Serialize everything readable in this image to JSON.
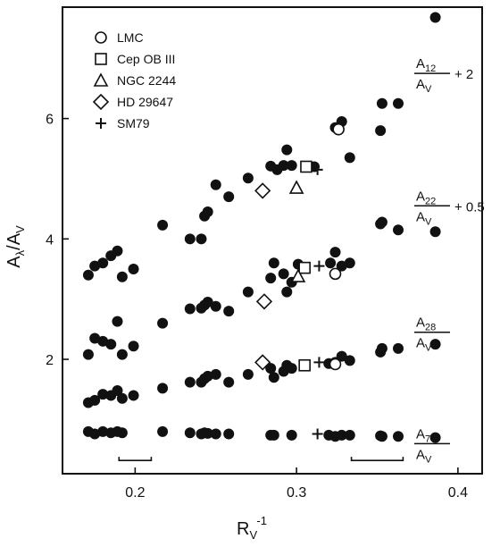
{
  "chart_data": {
    "type": "scatter",
    "xlabel_main": "R",
    "xlabel_sub": "V",
    "xlabel_sup": "-1",
    "ylabel_main": "A",
    "ylabel_sub": "λ",
    "ylabel_tail": "/A",
    "ylabel_sub2": "V",
    "xlim": [
      0.155,
      0.415
    ],
    "ylim": [
      0.1,
      7.85
    ],
    "xticks": [
      {
        "v": 0.2,
        "label": "0.2"
      },
      {
        "v": 0.3,
        "label": "0.3"
      },
      {
        "v": 0.4,
        "label": "0.4"
      }
    ],
    "yticks": [
      {
        "v": 2,
        "label": "2"
      },
      {
        "v": 4,
        "label": "4"
      },
      {
        "v": 6,
        "label": "6"
      }
    ],
    "legend": [
      {
        "symbol": "circle",
        "label": "LMC"
      },
      {
        "symbol": "square",
        "label": "Cep OB III"
      },
      {
        "symbol": "triangle",
        "label": "NGC 2244"
      },
      {
        "symbol": "diamond",
        "label": "HD 29647"
      },
      {
        "symbol": "plus",
        "label": "SM79"
      }
    ],
    "series": [
      {
        "name": "A12",
        "num": "A",
        "num_sub": "12",
        "den": "A",
        "den_sub": "V",
        "offset": "+ 2",
        "label_y": 6.75,
        "points": [
          [
            0.171,
            3.4
          ],
          [
            0.175,
            3.55
          ],
          [
            0.18,
            3.6
          ],
          [
            0.185,
            3.72
          ],
          [
            0.189,
            3.8
          ],
          [
            0.192,
            3.37
          ],
          [
            0.199,
            3.5
          ],
          [
            0.217,
            4.23
          ],
          [
            0.234,
            4.0
          ],
          [
            0.241,
            4.0
          ],
          [
            0.243,
            4.38
          ],
          [
            0.245,
            4.45
          ],
          [
            0.25,
            4.9
          ],
          [
            0.258,
            4.7
          ],
          [
            0.27,
            5.01
          ],
          [
            0.284,
            5.21
          ],
          [
            0.288,
            5.15
          ],
          [
            0.292,
            5.22
          ],
          [
            0.294,
            5.48
          ],
          [
            0.297,
            5.22
          ],
          [
            0.311,
            5.2
          ],
          [
            0.324,
            5.85
          ],
          [
            0.328,
            5.95
          ],
          [
            0.333,
            5.35
          ],
          [
            0.352,
            5.8
          ],
          [
            0.353,
            6.25
          ],
          [
            0.363,
            6.25
          ],
          [
            0.386,
            7.68
          ]
        ],
        "markers": [
          {
            "shape": "circle",
            "x": 0.326,
            "y": 5.82
          },
          {
            "shape": "square",
            "x": 0.306,
            "y": 5.2
          },
          {
            "shape": "triangle",
            "x": 0.3,
            "y": 4.85
          },
          {
            "shape": "diamond",
            "x": 0.279,
            "y": 4.8
          },
          {
            "shape": "plus",
            "x": 0.313,
            "y": 5.15
          }
        ]
      },
      {
        "name": "A22",
        "num": "A",
        "num_sub": "22",
        "den": "A",
        "den_sub": "V",
        "offset": "+ 0.5",
        "label_y": 4.55,
        "points": [
          [
            0.171,
            2.08
          ],
          [
            0.175,
            2.35
          ],
          [
            0.18,
            2.3
          ],
          [
            0.185,
            2.25
          ],
          [
            0.189,
            2.63
          ],
          [
            0.192,
            2.08
          ],
          [
            0.199,
            2.22
          ],
          [
            0.217,
            2.6
          ],
          [
            0.234,
            2.84
          ],
          [
            0.241,
            2.85
          ],
          [
            0.243,
            2.9
          ],
          [
            0.245,
            2.95
          ],
          [
            0.25,
            2.88
          ],
          [
            0.258,
            2.8
          ],
          [
            0.27,
            3.12
          ],
          [
            0.284,
            3.35
          ],
          [
            0.286,
            3.6
          ],
          [
            0.292,
            3.42
          ],
          [
            0.294,
            3.12
          ],
          [
            0.297,
            3.28
          ],
          [
            0.301,
            3.58
          ],
          [
            0.321,
            3.6
          ],
          [
            0.324,
            3.78
          ],
          [
            0.328,
            3.55
          ],
          [
            0.333,
            3.6
          ],
          [
            0.352,
            4.25
          ],
          [
            0.353,
            4.28
          ],
          [
            0.363,
            4.15
          ],
          [
            0.386,
            4.12
          ]
        ],
        "markers": [
          {
            "shape": "circle",
            "x": 0.324,
            "y": 3.42
          },
          {
            "shape": "square",
            "x": 0.305,
            "y": 3.52
          },
          {
            "shape": "triangle",
            "x": 0.301,
            "y": 3.38
          },
          {
            "shape": "diamond",
            "x": 0.28,
            "y": 2.96
          },
          {
            "shape": "plus",
            "x": 0.314,
            "y": 3.55
          }
        ]
      },
      {
        "name": "A28",
        "num": "A",
        "num_sub": "28",
        "den": "A",
        "den_sub": "V",
        "offset": "",
        "label_y": 2.45,
        "points": [
          [
            0.171,
            1.28
          ],
          [
            0.175,
            1.32
          ],
          [
            0.18,
            1.42
          ],
          [
            0.185,
            1.4
          ],
          [
            0.189,
            1.48
          ],
          [
            0.192,
            1.35
          ],
          [
            0.199,
            1.4
          ],
          [
            0.217,
            1.52
          ],
          [
            0.234,
            1.62
          ],
          [
            0.241,
            1.62
          ],
          [
            0.243,
            1.68
          ],
          [
            0.245,
            1.72
          ],
          [
            0.25,
            1.75
          ],
          [
            0.258,
            1.62
          ],
          [
            0.27,
            1.75
          ],
          [
            0.284,
            1.85
          ],
          [
            0.286,
            1.7
          ],
          [
            0.292,
            1.8
          ],
          [
            0.294,
            1.9
          ],
          [
            0.297,
            1.85
          ],
          [
            0.32,
            1.93
          ],
          [
            0.324,
            1.95
          ],
          [
            0.328,
            2.05
          ],
          [
            0.333,
            1.98
          ],
          [
            0.352,
            2.12
          ],
          [
            0.353,
            2.18
          ],
          [
            0.363,
            2.18
          ],
          [
            0.386,
            2.25
          ]
        ],
        "markers": [
          {
            "shape": "circle",
            "x": 0.324,
            "y": 1.92
          },
          {
            "shape": "square",
            "x": 0.305,
            "y": 1.9
          },
          {
            "shape": "diamond",
            "x": 0.279,
            "y": 1.95
          },
          {
            "shape": "plus",
            "x": 0.314,
            "y": 1.95
          }
        ]
      },
      {
        "name": "A70",
        "num": "A",
        "num_sub": "70",
        "den": "A",
        "den_sub": "V",
        "offset": "",
        "label_y": 0.6,
        "points": [
          [
            0.171,
            0.8
          ],
          [
            0.175,
            0.76
          ],
          [
            0.18,
            0.8
          ],
          [
            0.185,
            0.78
          ],
          [
            0.189,
            0.8
          ],
          [
            0.192,
            0.78
          ],
          [
            0.217,
            0.8
          ],
          [
            0.234,
            0.78
          ],
          [
            0.241,
            0.76
          ],
          [
            0.243,
            0.78
          ],
          [
            0.245,
            0.77
          ],
          [
            0.25,
            0.76
          ],
          [
            0.258,
            0.76
          ],
          [
            0.284,
            0.74
          ],
          [
            0.286,
            0.74
          ],
          [
            0.297,
            0.74
          ],
          [
            0.32,
            0.74
          ],
          [
            0.324,
            0.72
          ],
          [
            0.328,
            0.74
          ],
          [
            0.333,
            0.74
          ],
          [
            0.352,
            0.73
          ],
          [
            0.353,
            0.72
          ],
          [
            0.363,
            0.72
          ],
          [
            0.386,
            0.7
          ]
        ],
        "markers": [
          {
            "shape": "plus",
            "x": 0.313,
            "y": 0.76
          }
        ]
      }
    ],
    "error_bars": [
      {
        "x_center": 0.2,
        "half_width": 0.01,
        "y": 0.32
      },
      {
        "x_center": 0.35,
        "half_width": 0.016,
        "y": 0.32
      }
    ]
  }
}
